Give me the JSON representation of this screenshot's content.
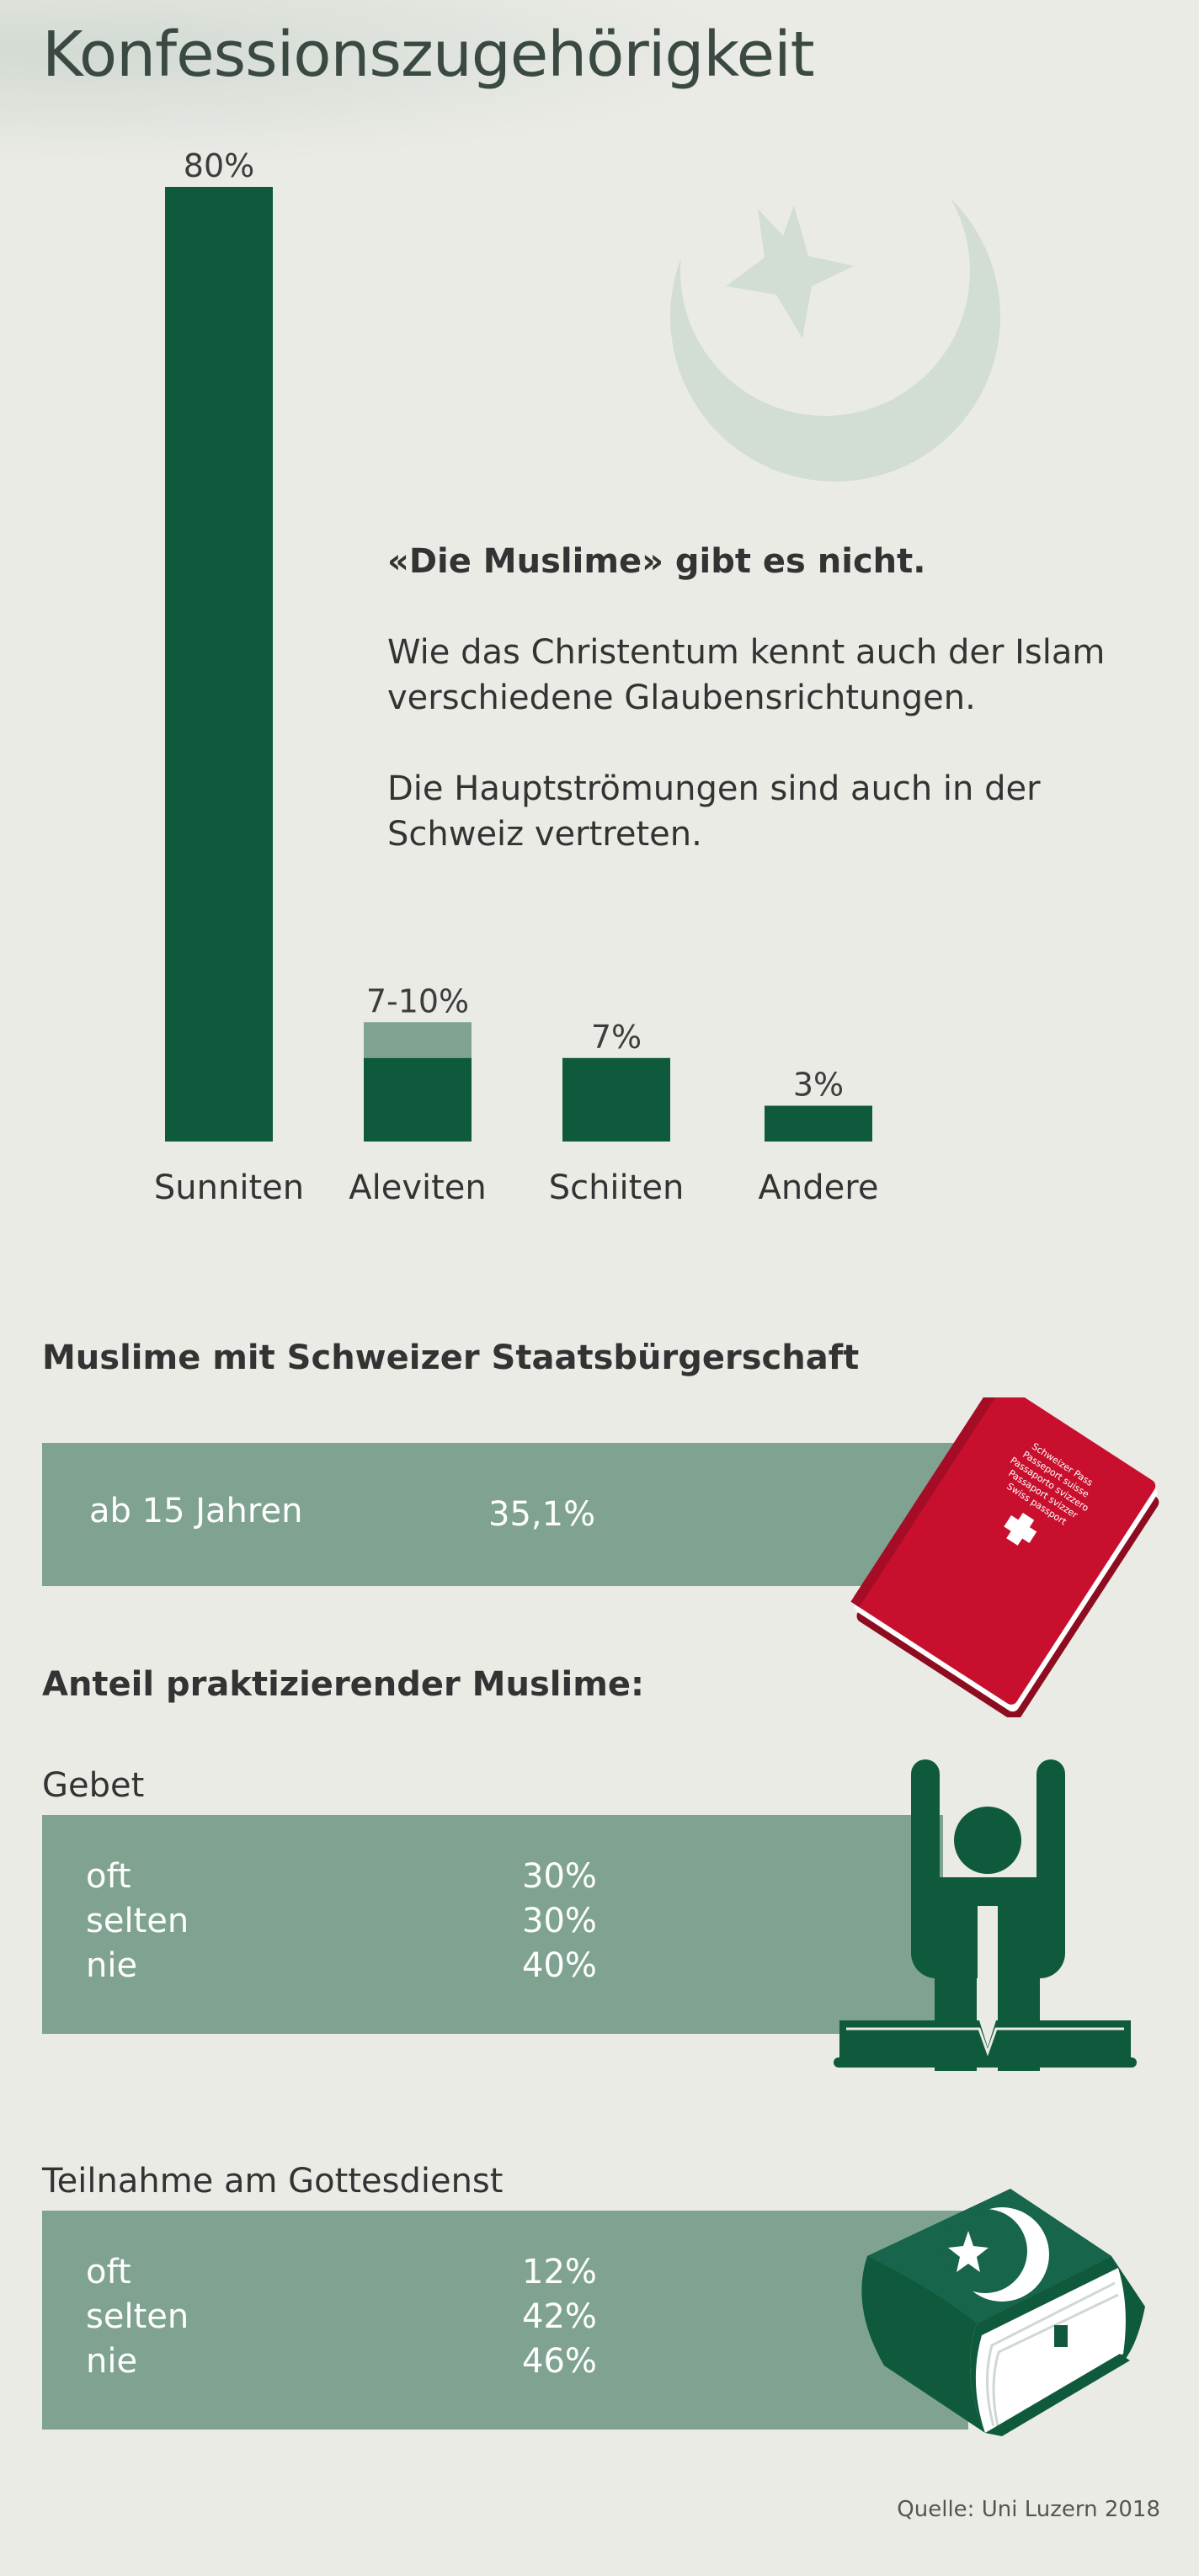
{
  "title": "Konfessionszugehörigkeit",
  "intro": {
    "heading": "«Die Muslime» gibt es nicht.",
    "para1": "Wie das Christentum kennt auch der Islam verschiedene Glaubensrichtungen.",
    "para2": "Die Hauptströmungen sind auch in der Schweiz vertreten."
  },
  "chart_data": {
    "type": "bar",
    "categories": [
      "Sunniten",
      "Aleviten",
      "Schiiten",
      "Andere"
    ],
    "values": [
      80,
      7,
      7,
      3
    ],
    "range_upper": [
      null,
      10,
      null,
      null
    ],
    "value_labels": [
      "80%",
      "7-10%",
      "7%",
      "3%"
    ],
    "title": "",
    "xlabel": "",
    "ylabel": "",
    "ylim": [
      0,
      80
    ],
    "grid": false,
    "colors": {
      "bar": "#0f5a3c",
      "range": "#7fa390"
    }
  },
  "citizenship": {
    "title": "Muslime mit Schweizer Staatsbürgerschaft",
    "label": "ab 15 Jahren",
    "value": "35,1%",
    "icon": "swiss-passport-icon"
  },
  "practice": {
    "title": "Anteil praktizierender Muslime:",
    "prayer": {
      "title": "Gebet",
      "icon": "praying-person-icon",
      "rows": [
        {
          "label": "oft",
          "value": "30%"
        },
        {
          "label": "selten",
          "value": "30%"
        },
        {
          "label": "nie",
          "value": "40%"
        }
      ]
    },
    "worship": {
      "title": "Teilnahme am Gottesdienst",
      "icon": "koran-book-icon",
      "rows": [
        {
          "label": "oft",
          "value": "12%"
        },
        {
          "label": "selten",
          "value": "42%"
        },
        {
          "label": "nie",
          "value": "46%"
        }
      ]
    }
  },
  "source": "Quelle: Uni Luzern 2018",
  "colors": {
    "background": "#ebebe6",
    "dark_green": "#0f5a3c",
    "light_green": "#7fa390",
    "crescent_watermark": "#d2ddd3",
    "passport_red": "#c8102e"
  }
}
